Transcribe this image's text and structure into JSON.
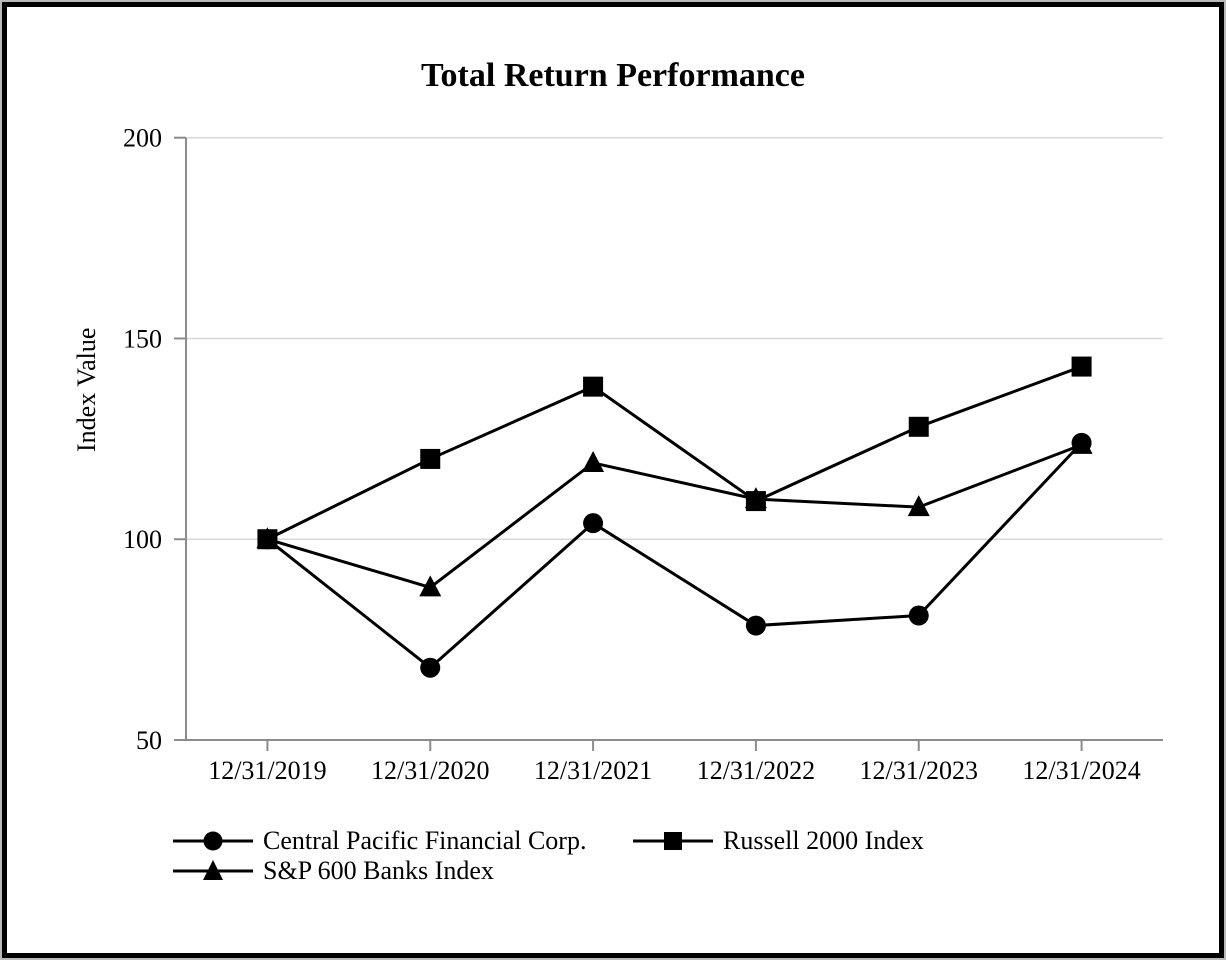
{
  "chart": {
    "title": "Total Return Performance",
    "ylabel": "Index Value"
  },
  "chart_data": {
    "type": "line",
    "title": "Total Return Performance",
    "xlabel": "",
    "ylabel": "Index Value",
    "categories": [
      "12/31/2019",
      "12/31/2020",
      "12/31/2021",
      "12/31/2022",
      "12/31/2023",
      "12/31/2024"
    ],
    "series": [
      {
        "name": "Central Pacific Financial Corp.",
        "marker": "circle",
        "z": 1,
        "values": [
          100,
          68,
          104,
          78.5,
          81,
          124
        ]
      },
      {
        "name": "Russell 2000 Index",
        "marker": "square",
        "z": 2,
        "values": [
          100,
          120,
          138,
          109.5,
          128,
          143
        ]
      },
      {
        "name": "S&P 600 Banks Index",
        "marker": "triangle",
        "z": 0,
        "values": [
          100,
          88,
          119,
          110,
          108,
          123.5
        ]
      }
    ],
    "ylim": [
      50,
      200
    ],
    "yticks": [
      50,
      100,
      150,
      200
    ],
    "grid": true,
    "gridlines_at": [
      100,
      150,
      200
    ],
    "legend_position": "bottom",
    "colors": {
      "series": "#000000",
      "grid": "#d9d9d9",
      "axis": "#8c8c8c",
      "text": "#000000",
      "background": "#ffffff",
      "frame_border": "#000000"
    }
  }
}
